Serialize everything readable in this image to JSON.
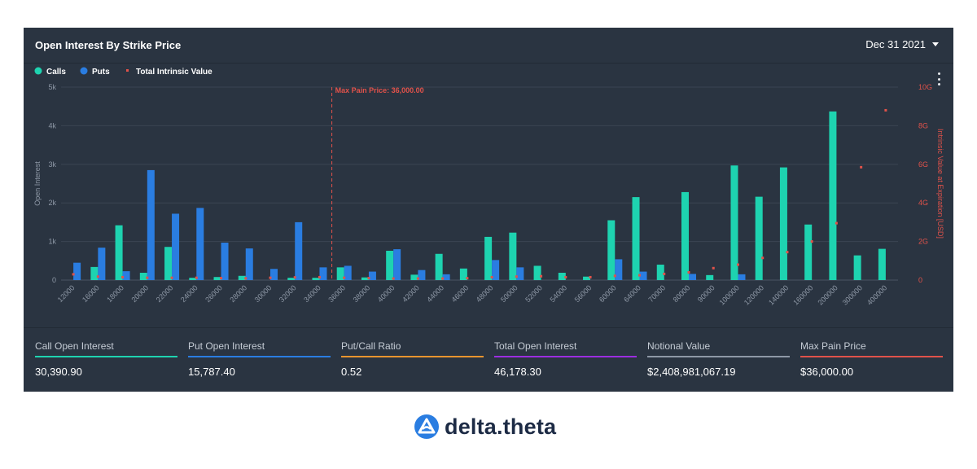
{
  "header": {
    "title": "Open Interest By Strike Price",
    "date": "Dec 31 2021"
  },
  "colors": {
    "calls": "#1ed3b0",
    "puts": "#2a7de1",
    "intrinsic": "#e1524a",
    "grid": "#3a4452",
    "tick": "#8e98a6",
    "stat_calls": "#1ed3b0",
    "stat_puts": "#2a7de1",
    "stat_ratio": "#e8942e",
    "stat_total": "#9c2ee0",
    "stat_notional": "#8e98a6",
    "stat_maxpain": "#e1524a"
  },
  "chart_data": {
    "type": "bar",
    "legend": [
      "Calls",
      "Puts",
      "Total Intrinsic Value"
    ],
    "legend_position": "top-left",
    "categories": [
      "12000",
      "16000",
      "18000",
      "20000",
      "22000",
      "24000",
      "26000",
      "28000",
      "30000",
      "32000",
      "34000",
      "36000",
      "38000",
      "40000",
      "42000",
      "44000",
      "46000",
      "48000",
      "50000",
      "52000",
      "54000",
      "56000",
      "60000",
      "64000",
      "70000",
      "80000",
      "90000",
      "100000",
      "120000",
      "140000",
      "160000",
      "200000",
      "300000",
      "400000"
    ],
    "series": [
      {
        "name": "Calls",
        "axis": "left",
        "values": [
          0,
          340,
          1420,
          190,
          860,
          60,
          80,
          110,
          0,
          60,
          60,
          330,
          70,
          760,
          140,
          680,
          300,
          1120,
          1230,
          370,
          190,
          90,
          1550,
          2150,
          400,
          2280,
          130,
          2970,
          2160,
          2920,
          1440,
          4370,
          640,
          810
        ]
      },
      {
        "name": "Puts",
        "axis": "left",
        "values": [
          450,
          840,
          230,
          2850,
          1720,
          1870,
          970,
          820,
          290,
          1500,
          330,
          370,
          220,
          800,
          260,
          150,
          0,
          520,
          330,
          0,
          0,
          0,
          540,
          220,
          0,
          160,
          0,
          150,
          0,
          0,
          0,
          0,
          0,
          0
        ]
      },
      {
        "name": "Total Intrinsic Value",
        "axis": "right",
        "type": "scatter",
        "values": [
          0.3,
          0.18,
          0.15,
          0.12,
          0.12,
          0.12,
          0.1,
          0.09,
          0.12,
          0.14,
          0.15,
          0.12,
          0.1,
          0.08,
          0.08,
          0.08,
          0.1,
          0.15,
          0.18,
          0.2,
          0.15,
          0.15,
          0.22,
          0.25,
          0.32,
          0.4,
          0.62,
          0.8,
          1.15,
          1.45,
          2.0,
          2.95,
          5.85,
          8.8
        ]
      }
    ],
    "ylabel": "Open Interest",
    "y2label": "Intrinsic Value at Expiration [USD]",
    "ylim": [
      0,
      5000
    ],
    "y2lim": [
      0,
      10
    ],
    "yticks": [
      "0",
      "1k",
      "2k",
      "3k",
      "4k",
      "5k"
    ],
    "y2ticks": [
      "0",
      "2G",
      "4G",
      "6G",
      "8G",
      "10G"
    ],
    "annotation": {
      "label": "Max Pain Price: 36,000.00",
      "category": "36000"
    },
    "grid": true
  },
  "stats": [
    {
      "label": "Call Open Interest",
      "value": "30,390.90"
    },
    {
      "label": "Put Open Interest",
      "value": "15,787.40"
    },
    {
      "label": "Put/Call Ratio",
      "value": "0.52"
    },
    {
      "label": "Total Open Interest",
      "value": "46,178.30"
    },
    {
      "label": "Notional Value",
      "value": "$2,408,981,067.19"
    },
    {
      "label": "Max Pain Price",
      "value": "$36,000.00"
    }
  ],
  "brand": {
    "name": "delta.theta",
    "logo_icon": "delta-theta-logo-icon"
  }
}
